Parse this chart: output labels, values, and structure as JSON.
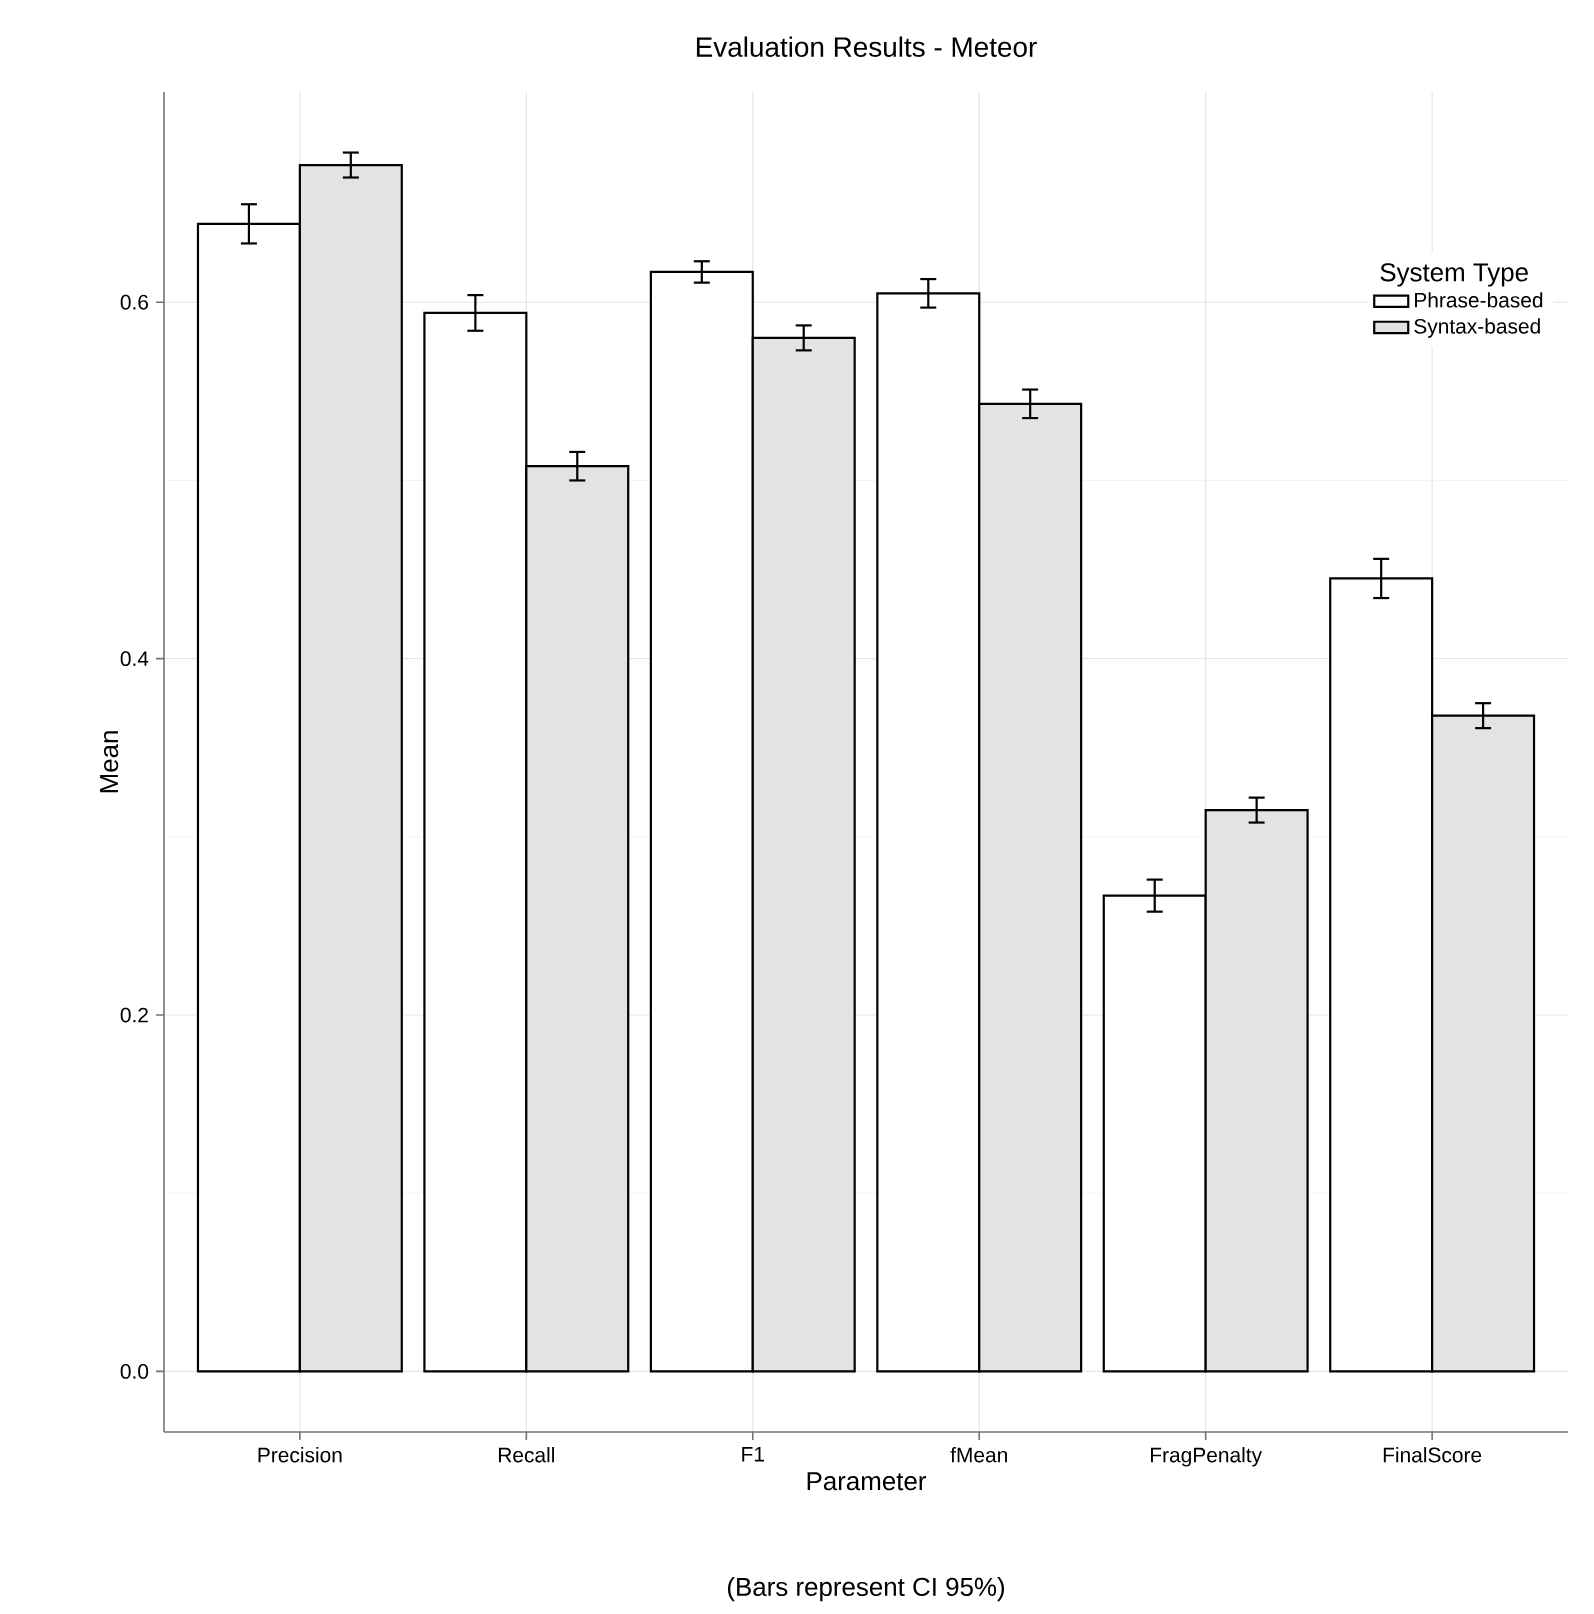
{
  "chart_data": {
    "type": "bar",
    "title": "Evaluation Results - Meteor",
    "xlabel": "Parameter",
    "ylabel": "Mean",
    "legend_title": "System Type",
    "annotations": [
      "(Bars represent CI 95%)"
    ],
    "categories": [
      "Precision",
      "Recall",
      "F1",
      "fMean",
      "FragPenalty",
      "FinalScore"
    ],
    "series": [
      {
        "name": "Phrase-based",
        "color": "#ffffff",
        "values": [
          0.644,
          0.594,
          0.617,
          0.605,
          0.267,
          0.445
        ],
        "errors": [
          0.011,
          0.01,
          0.006,
          0.008,
          0.009,
          0.011
        ]
      },
      {
        "name": "Syntax-based",
        "color": "#e3e3e3",
        "values": [
          0.677,
          0.508,
          0.58,
          0.543,
          0.315,
          0.368
        ],
        "errors": [
          0.007,
          0.008,
          0.007,
          0.008,
          0.007,
          0.007
        ]
      }
    ],
    "ylim": [
      -0.034,
      0.718
    ],
    "yticks": [
      {
        "value": 0,
        "label": "0.0"
      },
      {
        "value": 0.2,
        "label": "0.2"
      },
      {
        "value": 0.4,
        "label": "0.4"
      },
      {
        "value": 0.6,
        "label": "0.6"
      }
    ],
    "grid": true,
    "legend": "top right"
  }
}
